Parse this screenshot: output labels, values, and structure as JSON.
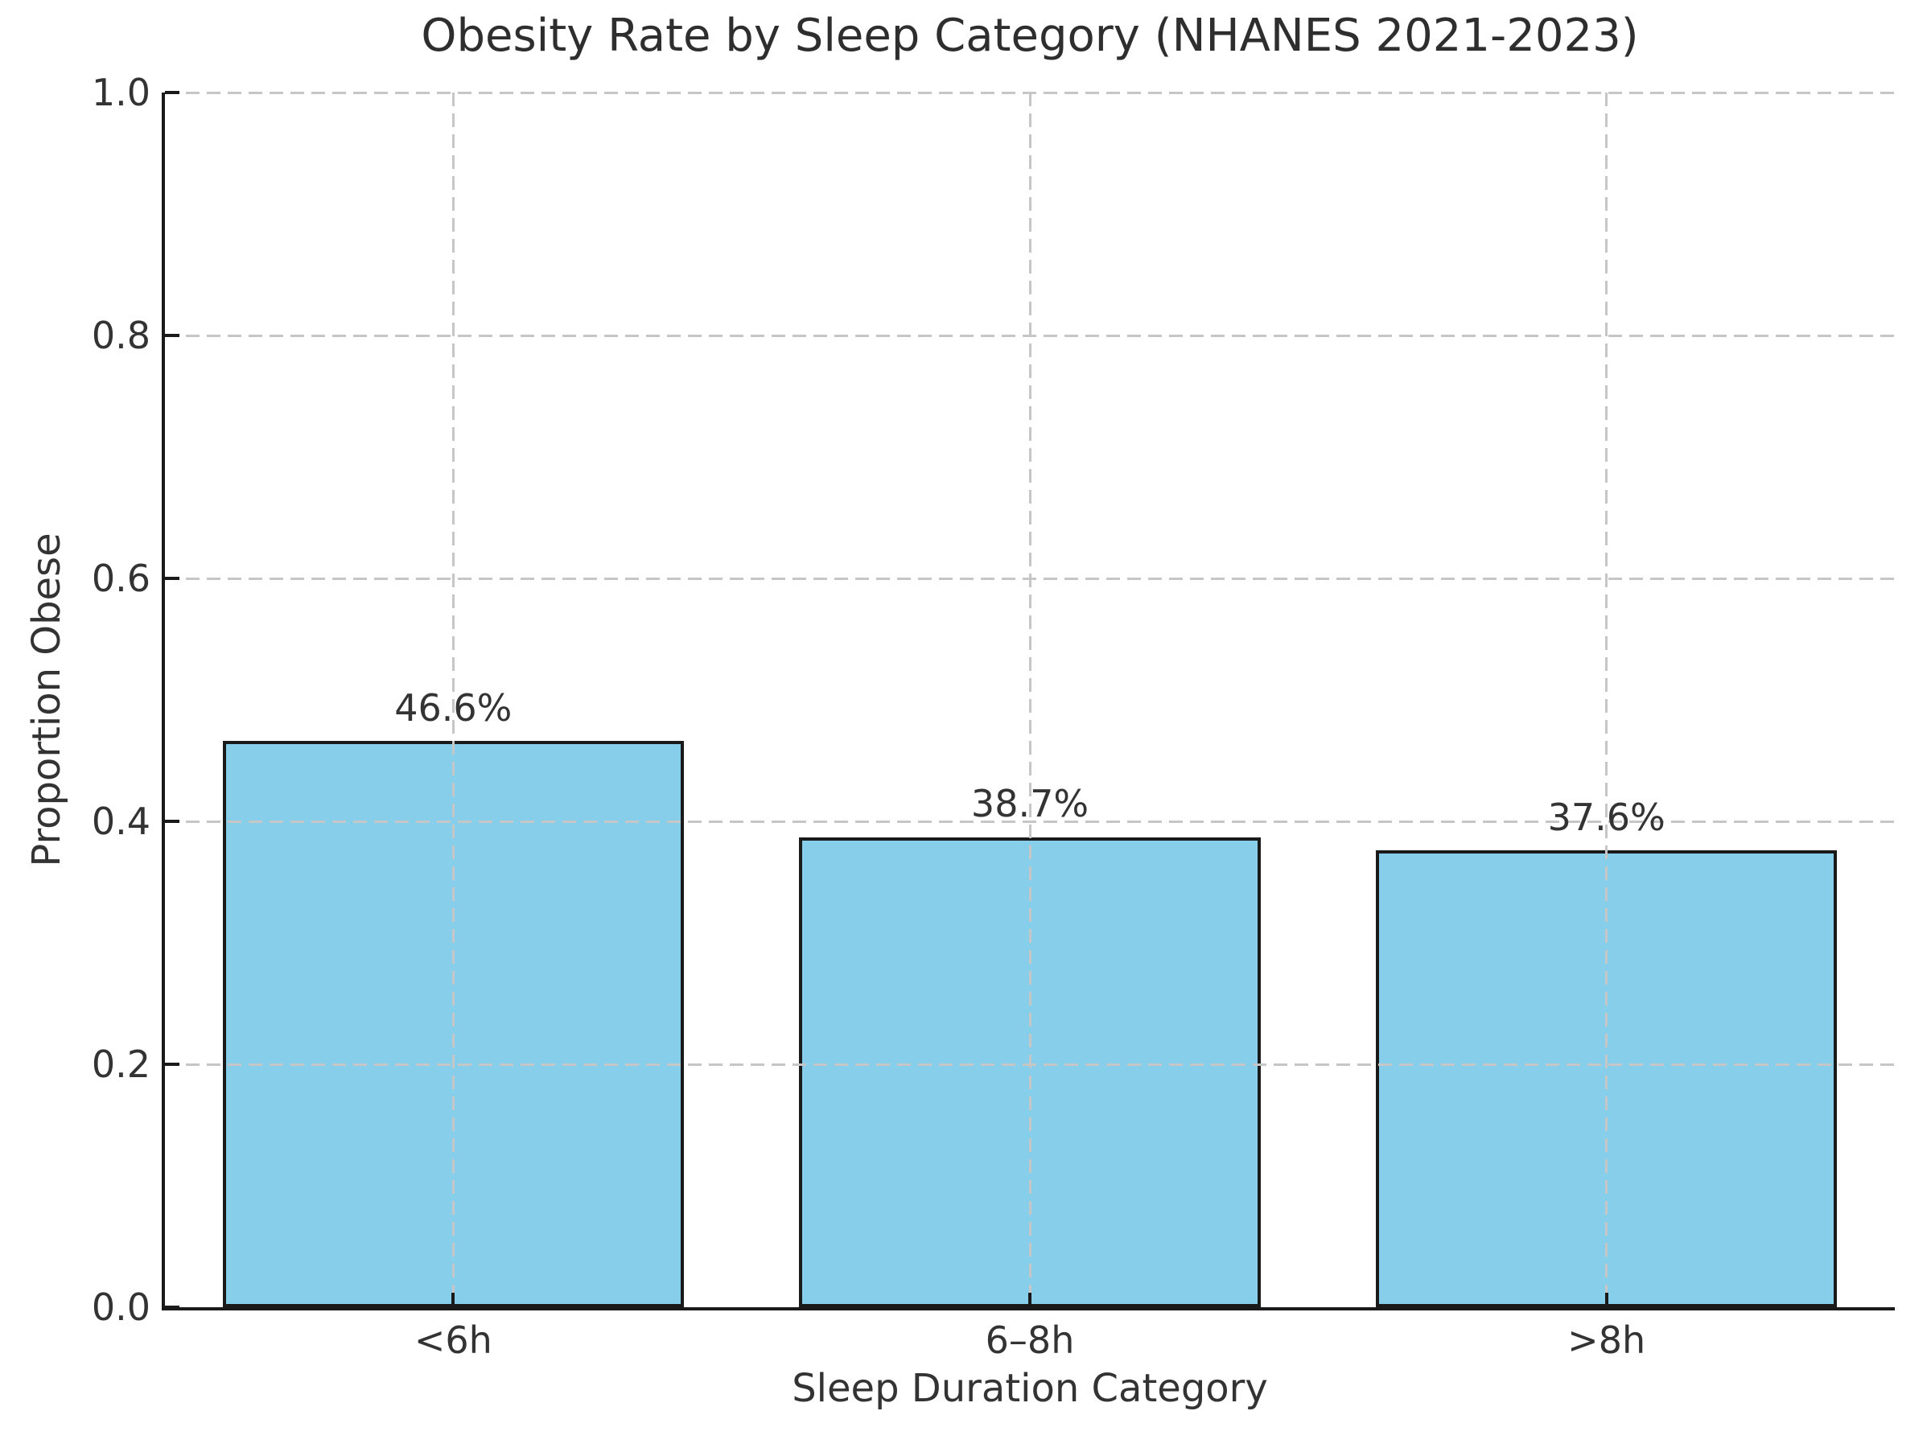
{
  "chart_data": {
    "type": "bar",
    "title": "Obesity Rate by Sleep Category (NHANES 2021-2023)",
    "xlabel": "Sleep Duration Category",
    "ylabel": "Proportion Obese",
    "categories": [
      "<6h",
      "6–8h",
      ">8h"
    ],
    "values": [
      0.466,
      0.387,
      0.376
    ],
    "bar_labels": [
      "46.6%",
      "38.7%",
      "37.6%"
    ],
    "ylim": [
      0.0,
      1.0
    ],
    "yticks": [
      0.0,
      0.2,
      0.4,
      0.6,
      0.8,
      1.0
    ],
    "ytick_labels": [
      "0.0",
      "0.2",
      "0.4",
      "0.6",
      "0.8",
      "1.0"
    ],
    "bar_width_fraction": 0.8,
    "grid": "dashed, horizontal at y ticks and vertical at category centers, drawn above bars",
    "legend": "none",
    "colors": {
      "bar_fill": "#87CEEB",
      "bar_edge": "#1a1a1a",
      "grid": "#c6c6c6",
      "text": "#333333",
      "spine": "#1a1a1a",
      "background": "#ffffff"
    }
  }
}
